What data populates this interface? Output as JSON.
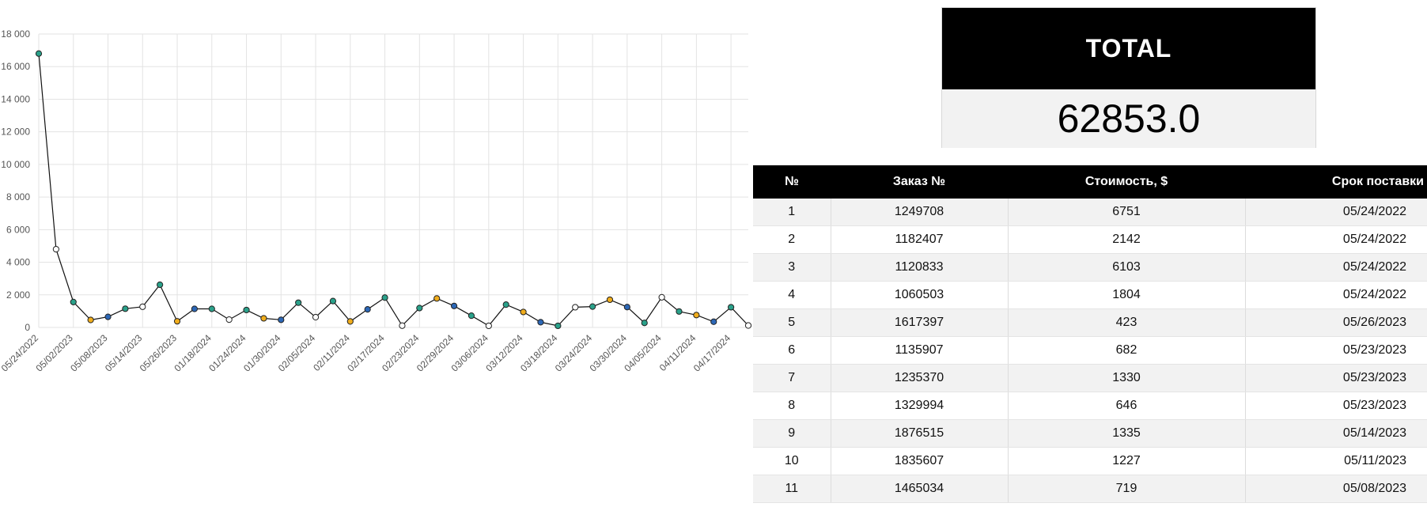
{
  "chart_data": {
    "type": "line",
    "title": "",
    "xlabel": "",
    "ylabel": "",
    "ylim": [
      0,
      18000
    ],
    "yticks": [
      "0",
      "2 000",
      "4 000",
      "6 000",
      "8 000",
      "10 000",
      "12 000",
      "14 000",
      "16 000",
      "18 000"
    ],
    "x_tick_labels": [
      "05/24/2022",
      "05/02/2023",
      "05/08/2023",
      "05/14/2023",
      "05/26/2023",
      "01/18/2024",
      "01/24/2024",
      "01/30/2024",
      "02/05/2024",
      "02/11/2024",
      "02/17/2024",
      "02/23/2024",
      "02/29/2024",
      "03/06/2024",
      "03/12/2024",
      "03/18/2024",
      "03/24/2024",
      "03/30/2024",
      "04/05/2024",
      "04/11/2024",
      "04/17/2024"
    ],
    "grid": true,
    "series": [
      {
        "values": [
          16800,
          4800,
          1560,
          460,
          650,
          1150,
          1270,
          2620,
          380,
          1140,
          1140,
          480,
          1070,
          560,
          470,
          1520,
          630,
          1620,
          370,
          1110,
          1830,
          110,
          1190,
          1780,
          1320,
          720,
          100,
          1400,
          950,
          320,
          100,
          1240,
          1280,
          1700,
          1250,
          280,
          1850,
          980,
          760,
          350,
          1240,
          120
        ],
        "point_colors": [
          "#2aa18a",
          "#ffffff",
          "#2aa18a",
          "#f0ad1c",
          "#2c67b6",
          "#2aa18a",
          "#ffffff",
          "#2aa18a",
          "#f0ad1c",
          "#2c67b6",
          "#2aa18a",
          "#ffffff",
          "#2aa18a",
          "#f0ad1c",
          "#2c67b6",
          "#2aa18a",
          "#ffffff",
          "#2aa18a",
          "#f0ad1c",
          "#2c67b6",
          "#2aa18a",
          "#ffffff",
          "#2aa18a",
          "#f0ad1c",
          "#2c67b6",
          "#2aa18a",
          "#ffffff",
          "#2aa18a",
          "#f0ad1c",
          "#2c67b6",
          "#2aa18a",
          "#ffffff",
          "#2aa18a",
          "#f0ad1c",
          "#2c67b6",
          "#2aa18a",
          "#ffffff",
          "#2aa18a",
          "#f0ad1c",
          "#2c67b6",
          "#2aa18a",
          "#ffffff"
        ]
      }
    ]
  },
  "total": {
    "label": "TOTAL",
    "value": "62853.0"
  },
  "table": {
    "headers": [
      "№",
      "Заказ №",
      "Стоимость, $",
      "Срок поставки"
    ],
    "rows": [
      [
        "1",
        "1249708",
        "6751",
        "05/24/2022"
      ],
      [
        "2",
        "1182407",
        "2142",
        "05/24/2022"
      ],
      [
        "3",
        "1120833",
        "6103",
        "05/24/2022"
      ],
      [
        "4",
        "1060503",
        "1804",
        "05/24/2022"
      ],
      [
        "5",
        "1617397",
        "423",
        "05/26/2023"
      ],
      [
        "6",
        "1135907",
        "682",
        "05/23/2023"
      ],
      [
        "7",
        "1235370",
        "1330",
        "05/23/2023"
      ],
      [
        "8",
        "1329994",
        "646",
        "05/23/2023"
      ],
      [
        "9",
        "1876515",
        "1335",
        "05/14/2023"
      ],
      [
        "10",
        "1835607",
        "1227",
        "05/11/2023"
      ],
      [
        "11",
        "1465034",
        "719",
        "05/08/2023"
      ]
    ]
  }
}
